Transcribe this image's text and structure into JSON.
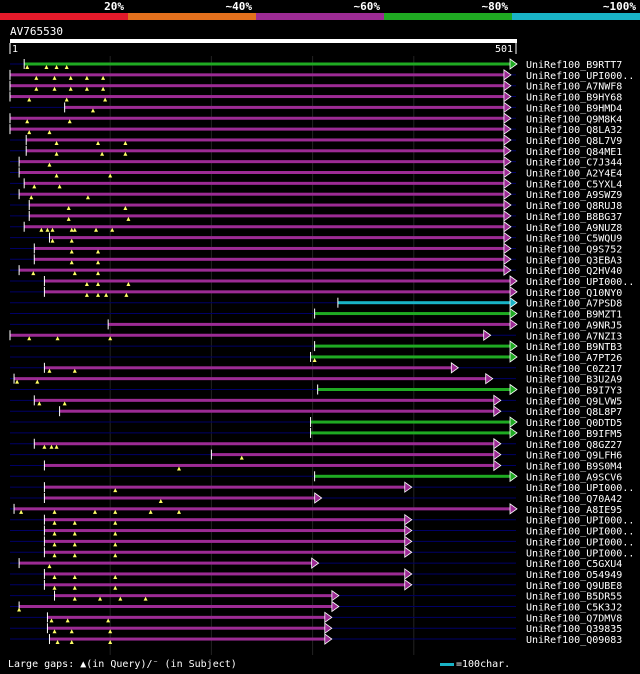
{
  "query": {
    "id": "AV765530",
    "start_label": "1",
    "end_label": "501",
    "length": 501
  },
  "colors": {
    "bg": "#000000",
    "text": "#ffffff",
    "id20": "#e41a2a",
    "id40": "#e2701d",
    "id60": "#9c2b94",
    "id80": "#1faa22",
    "id100": "#19b3c6",
    "query_bar": "#ffffff",
    "gap_line": "#000066",
    "grid": "#222222",
    "gap_marker": "#ffff66"
  },
  "legend": [
    {
      "label": "20%",
      "color": "#e41a2a"
    },
    {
      "label": "~40%",
      "color": "#e2701d"
    },
    {
      "label": "~60%",
      "color": "#9c2b94"
    },
    {
      "label": "~80%",
      "color": "#1faa22"
    },
    {
      "label": "~100%",
      "color": "#19b3c6"
    }
  ],
  "footer": {
    "text": "Large gaps: ▲(in Query)/⁻ (in Subject)",
    "scale": "=100char."
  },
  "chart_data": {
    "type": "alignment-overview",
    "x_range": [
      1,
      501
    ],
    "gridlines": [
      100,
      200,
      300,
      400
    ],
    "hits": [
      {
        "name": "UniRef100_B9RTT7",
        "start": 15,
        "end": 501,
        "identity": "80",
        "gaps": [
          18,
          37,
          47,
          57
        ]
      },
      {
        "name": "UniRef100_UPI000..",
        "start": 1,
        "end": 495,
        "identity": "60",
        "gaps": [
          27,
          45,
          61,
          77,
          93
        ]
      },
      {
        "name": "UniRef100_A7NWF8",
        "start": 1,
        "end": 495,
        "identity": "60",
        "gaps": [
          27,
          45,
          61,
          77,
          93
        ]
      },
      {
        "name": "UniRef100_B9HY68",
        "start": 1,
        "end": 495,
        "identity": "60",
        "gaps": [
          20,
          57,
          95
        ]
      },
      {
        "name": "UniRef100_B9HMD4",
        "start": 55,
        "end": 495,
        "identity": "60",
        "gaps": [
          83
        ]
      },
      {
        "name": "UniRef100_Q9M8K4",
        "start": 1,
        "end": 495,
        "identity": "60",
        "gaps": [
          18,
          60
        ]
      },
      {
        "name": "UniRef100_Q8LA32",
        "start": 1,
        "end": 495,
        "identity": "60",
        "gaps": [
          20,
          40
        ]
      },
      {
        "name": "UniRef100_Q8L7V9",
        "start": 17,
        "end": 495,
        "identity": "60",
        "gaps": [
          47,
          88,
          115
        ]
      },
      {
        "name": "UniRef100_Q84ME1",
        "start": 17,
        "end": 495,
        "identity": "60",
        "gaps": [
          47,
          92,
          115
        ]
      },
      {
        "name": "UniRef100_C7J344",
        "start": 10,
        "end": 495,
        "identity": "60",
        "gaps": [
          40
        ]
      },
      {
        "name": "UniRef100_A2Y4E4",
        "start": 10,
        "end": 495,
        "identity": "60",
        "gaps": [
          47,
          100
        ]
      },
      {
        "name": "UniRef100_C5YXL4",
        "start": 15,
        "end": 495,
        "identity": "60",
        "gaps": [
          25,
          50
        ]
      },
      {
        "name": "UniRef100_A9SWZ9",
        "start": 10,
        "end": 495,
        "identity": "60",
        "gaps": [
          22,
          78
        ]
      },
      {
        "name": "UniRef100_Q8RUJ8",
        "start": 20,
        "end": 495,
        "identity": "60",
        "gaps": [
          59,
          115
        ]
      },
      {
        "name": "UniRef100_B8BG37",
        "start": 20,
        "end": 495,
        "identity": "60",
        "gaps": [
          59,
          118
        ]
      },
      {
        "name": "UniRef100_A9NUZ8",
        "start": 15,
        "end": 495,
        "identity": "60",
        "gaps": [
          32,
          38,
          43,
          62,
          65,
          86,
          102
        ]
      },
      {
        "name": "UniRef100_C5WQU9",
        "start": 40,
        "end": 495,
        "identity": "60",
        "gaps": [
          43,
          62
        ]
      },
      {
        "name": "UniRef100_Q9S752",
        "start": 25,
        "end": 495,
        "identity": "60",
        "gaps": [
          62,
          88
        ]
      },
      {
        "name": "UniRef100_Q3EBA3",
        "start": 25,
        "end": 495,
        "identity": "60",
        "gaps": [
          62,
          88
        ]
      },
      {
        "name": "UniRef100_Q2HV40",
        "start": 10,
        "end": 495,
        "identity": "60",
        "gaps": [
          24,
          65,
          88
        ]
      },
      {
        "name": "UniRef100_UPI000..",
        "start": 35,
        "end": 501,
        "identity": "60",
        "gaps": [
          77,
          88,
          118
        ]
      },
      {
        "name": "UniRef100_Q10NY0",
        "start": 35,
        "end": 501,
        "identity": "60",
        "gaps": [
          77,
          88,
          96,
          116
        ]
      },
      {
        "name": "UniRef100_A7PSD8",
        "start": 325,
        "end": 501,
        "identity": "100",
        "gaps": []
      },
      {
        "name": "UniRef100_B9MZT1",
        "start": 302,
        "end": 501,
        "identity": "80",
        "gaps": []
      },
      {
        "name": "UniRef100_A9NRJ5",
        "start": 98,
        "end": 501,
        "identity": "60",
        "gaps": []
      },
      {
        "name": "UniRef100_A7NZI3",
        "start": 1,
        "end": 475,
        "identity": "60",
        "gaps": [
          20,
          48,
          100
        ]
      },
      {
        "name": "UniRef100_B9NTB3",
        "start": 302,
        "end": 501,
        "identity": "80",
        "gaps": []
      },
      {
        "name": "UniRef100_A7PT26",
        "start": 298,
        "end": 501,
        "identity": "80",
        "gaps": [
          302
        ]
      },
      {
        "name": "UniRef100_C0Z217",
        "start": 35,
        "end": 443,
        "identity": "60",
        "gaps": [
          40,
          65
        ]
      },
      {
        "name": "UniRef100_B3U2A9",
        "start": 5,
        "end": 477,
        "identity": "60",
        "gaps": [
          8,
          28
        ]
      },
      {
        "name": "UniRef100_B9I7Y3",
        "start": 305,
        "end": 501,
        "identity": "80",
        "gaps": []
      },
      {
        "name": "UniRef100_Q9LVW5",
        "start": 25,
        "end": 485,
        "identity": "60",
        "gaps": [
          30,
          55
        ]
      },
      {
        "name": "UniRef100_Q8L8P7",
        "start": 50,
        "end": 485,
        "identity": "60",
        "gaps": []
      },
      {
        "name": "UniRef100_Q0DTD5",
        "start": 298,
        "end": 501,
        "identity": "80",
        "gaps": []
      },
      {
        "name": "UniRef100_B9IFM5",
        "start": 298,
        "end": 501,
        "identity": "80",
        "gaps": []
      },
      {
        "name": "UniRef100_Q8GZ27",
        "start": 25,
        "end": 485,
        "identity": "60",
        "gaps": [
          35,
          42,
          47
        ]
      },
      {
        "name": "UniRef100_Q9LFH6",
        "start": 200,
        "end": 485,
        "identity": "60",
        "gaps": [
          230
        ]
      },
      {
        "name": "UniRef100_B9S0M4",
        "start": 35,
        "end": 485,
        "identity": "60",
        "gaps": [
          168
        ]
      },
      {
        "name": "UniRef100_A9SCV6",
        "start": 302,
        "end": 501,
        "identity": "80",
        "gaps": []
      },
      {
        "name": "UniRef100_UPI000..",
        "start": 35,
        "end": 397,
        "identity": "60",
        "gaps": [
          105
        ]
      },
      {
        "name": "UniRef100_Q70A42",
        "start": 35,
        "end": 308,
        "identity": "60",
        "gaps": [
          150
        ]
      },
      {
        "name": "UniRef100_A8IE95",
        "start": 5,
        "end": 501,
        "identity": "60",
        "gaps": [
          12,
          45,
          85,
          105,
          140,
          168
        ]
      },
      {
        "name": "UniRef100_UPI000..",
        "start": 35,
        "end": 397,
        "identity": "60",
        "gaps": [
          45,
          65,
          105
        ]
      },
      {
        "name": "UniRef100_UPI000..",
        "start": 35,
        "end": 397,
        "identity": "60",
        "gaps": [
          45,
          65,
          105
        ]
      },
      {
        "name": "UniRef100_UPI000..",
        "start": 35,
        "end": 397,
        "identity": "60",
        "gaps": [
          45,
          65,
          105
        ]
      },
      {
        "name": "UniRef100_UPI000..",
        "start": 35,
        "end": 397,
        "identity": "60",
        "gaps": [
          45,
          65,
          105
        ]
      },
      {
        "name": "UniRef100_C5GXU4",
        "start": 10,
        "end": 305,
        "identity": "60",
        "gaps": [
          40
        ]
      },
      {
        "name": "UniRef100_O54949",
        "start": 35,
        "end": 397,
        "identity": "60",
        "gaps": [
          45,
          65,
          105
        ]
      },
      {
        "name": "UniRef100_Q9UBE8",
        "start": 35,
        "end": 397,
        "identity": "60",
        "gaps": [
          45,
          65,
          105
        ]
      },
      {
        "name": "UniRef100_B5DR55",
        "start": 45,
        "end": 325,
        "identity": "60",
        "gaps": [
          65,
          90,
          110,
          135
        ]
      },
      {
        "name": "UniRef100_C5K3J2",
        "start": 10,
        "end": 325,
        "identity": "60",
        "gaps": [
          10
        ]
      },
      {
        "name": "UniRef100_Q7DMV8",
        "start": 38,
        "end": 318,
        "identity": "60",
        "gaps": [
          42,
          58,
          98
        ]
      },
      {
        "name": "UniRef100_Q39835",
        "start": 38,
        "end": 318,
        "identity": "60",
        "gaps": [
          45,
          62,
          100
        ]
      },
      {
        "name": "UniRef100_Q09083",
        "start": 40,
        "end": 318,
        "identity": "60",
        "gaps": [
          48,
          62,
          100
        ]
      }
    ]
  }
}
